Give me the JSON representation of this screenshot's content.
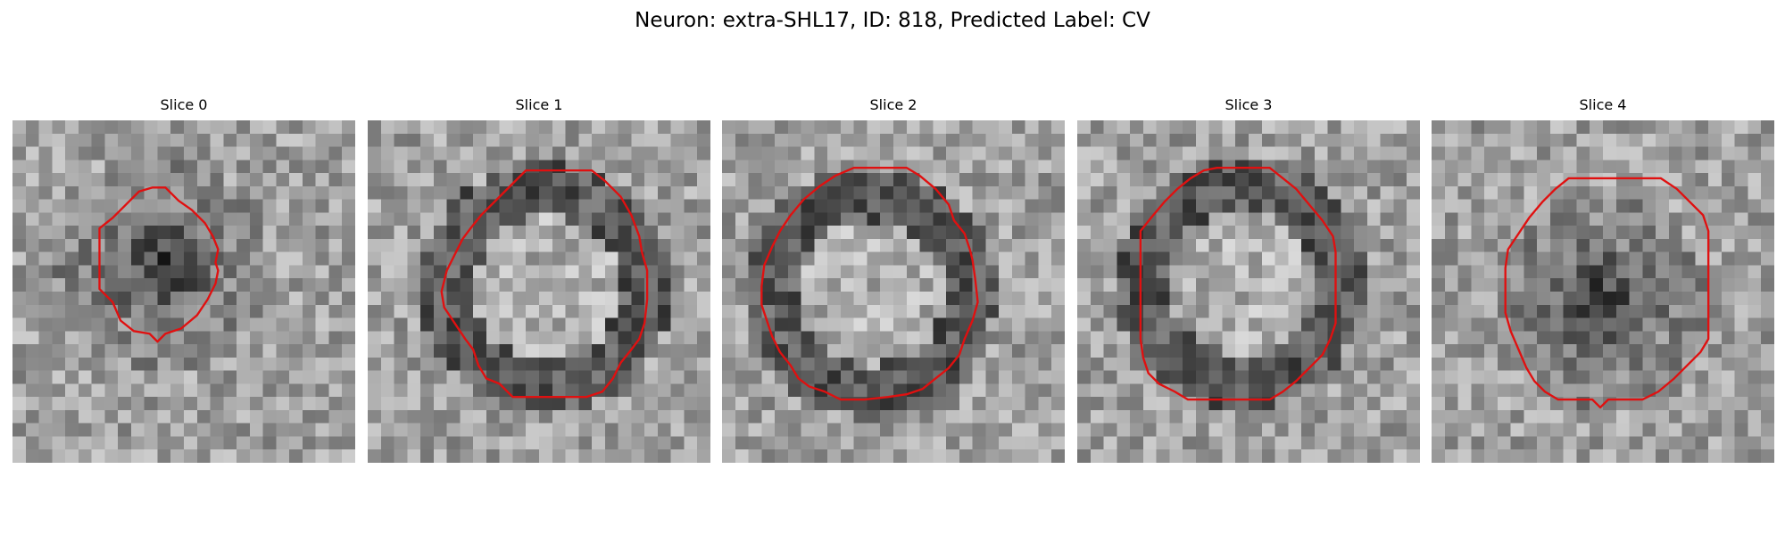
{
  "figure": {
    "title": "Neuron: extra-SHL17, ID: 818, Predicted Label: CV"
  },
  "contour_color": "#e01010",
  "slices": [
    {
      "title": "Slice 0",
      "blob": "dark",
      "contour": [
        [
          10.6,
          5.1
        ],
        [
          11.6,
          5.1
        ],
        [
          12.6,
          6.1
        ],
        [
          13.6,
          6.8
        ],
        [
          14.6,
          7.8
        ],
        [
          15.2,
          8.8
        ],
        [
          15.6,
          9.8
        ],
        [
          15.4,
          10.8
        ],
        [
          15.6,
          11.4
        ],
        [
          15.4,
          12.4
        ],
        [
          14.8,
          13.6
        ],
        [
          14.0,
          14.8
        ],
        [
          12.8,
          15.8
        ],
        [
          11.6,
          16.2
        ],
        [
          11.0,
          16.8
        ],
        [
          10.4,
          16.2
        ],
        [
          9.2,
          16.0
        ],
        [
          8.2,
          15.2
        ],
        [
          7.6,
          13.8
        ],
        [
          6.6,
          12.8
        ],
        [
          6.6,
          10.8
        ],
        [
          6.6,
          8.2
        ],
        [
          7.6,
          7.4
        ],
        [
          8.6,
          6.4
        ],
        [
          9.6,
          5.4
        ]
      ]
    },
    {
      "title": "Slice 1",
      "blob": "ring",
      "contour": [
        [
          12.0,
          3.8
        ],
        [
          17.0,
          3.8
        ],
        [
          18.0,
          4.6
        ],
        [
          19.2,
          5.8
        ],
        [
          20.0,
          7.2
        ],
        [
          20.6,
          8.8
        ],
        [
          20.8,
          10.0
        ],
        [
          21.2,
          11.4
        ],
        [
          21.2,
          13.6
        ],
        [
          21.0,
          15.4
        ],
        [
          20.6,
          16.6
        ],
        [
          20.0,
          17.4
        ],
        [
          19.2,
          18.4
        ],
        [
          18.6,
          19.6
        ],
        [
          17.8,
          20.6
        ],
        [
          16.6,
          21.0
        ],
        [
          11.0,
          21.0
        ],
        [
          10.0,
          20.0
        ],
        [
          9.0,
          19.6
        ],
        [
          8.4,
          18.6
        ],
        [
          8.0,
          17.4
        ],
        [
          7.4,
          16.6
        ],
        [
          6.6,
          15.4
        ],
        [
          5.8,
          14.2
        ],
        [
          5.6,
          13.0
        ],
        [
          6.0,
          11.4
        ],
        [
          6.6,
          10.2
        ],
        [
          7.2,
          9.0
        ],
        [
          7.8,
          8.2
        ],
        [
          8.6,
          7.2
        ],
        [
          9.8,
          6.0
        ],
        [
          11.0,
          4.8
        ]
      ]
    },
    {
      "title": "Slice 2",
      "blob": "ring",
      "contour": [
        [
          10.0,
          3.6
        ],
        [
          14.0,
          3.6
        ],
        [
          15.0,
          4.2
        ],
        [
          16.2,
          5.2
        ],
        [
          17.2,
          6.4
        ],
        [
          17.6,
          7.6
        ],
        [
          18.4,
          8.6
        ],
        [
          18.8,
          9.8
        ],
        [
          19.0,
          10.6
        ],
        [
          19.2,
          12.0
        ],
        [
          19.4,
          13.8
        ],
        [
          19.0,
          15.2
        ],
        [
          18.4,
          16.6
        ],
        [
          18.0,
          17.8
        ],
        [
          17.2,
          18.8
        ],
        [
          16.2,
          19.6
        ],
        [
          15.2,
          20.4
        ],
        [
          14.0,
          20.8
        ],
        [
          12.6,
          21.0
        ],
        [
          10.8,
          21.2
        ],
        [
          9.0,
          21.2
        ],
        [
          7.8,
          20.6
        ],
        [
          6.6,
          20.2
        ],
        [
          5.8,
          19.6
        ],
        [
          5.2,
          18.6
        ],
        [
          4.4,
          17.6
        ],
        [
          3.8,
          16.4
        ],
        [
          3.4,
          15.2
        ],
        [
          3.0,
          14.0
        ],
        [
          3.0,
          12.6
        ],
        [
          3.2,
          11.0
        ],
        [
          3.8,
          9.6
        ],
        [
          4.4,
          8.4
        ],
        [
          5.2,
          7.2
        ],
        [
          6.2,
          6.0
        ],
        [
          7.4,
          5.0
        ],
        [
          8.6,
          4.2
        ]
      ]
    },
    {
      "title": "Slice 3",
      "blob": "ring",
      "contour": [
        [
          10.6,
          3.6
        ],
        [
          14.6,
          3.6
        ],
        [
          15.6,
          4.4
        ],
        [
          16.6,
          5.2
        ],
        [
          17.6,
          6.4
        ],
        [
          18.6,
          7.6
        ],
        [
          19.4,
          8.8
        ],
        [
          19.6,
          10.0
        ],
        [
          19.6,
          13.0
        ],
        [
          19.6,
          15.4
        ],
        [
          19.2,
          16.6
        ],
        [
          18.6,
          17.8
        ],
        [
          17.6,
          18.8
        ],
        [
          16.6,
          19.8
        ],
        [
          15.6,
          20.6
        ],
        [
          14.6,
          21.2
        ],
        [
          8.4,
          21.2
        ],
        [
          7.4,
          20.6
        ],
        [
          6.2,
          20.0
        ],
        [
          5.4,
          19.2
        ],
        [
          5.0,
          18.0
        ],
        [
          4.8,
          16.6
        ],
        [
          4.8,
          11.2
        ],
        [
          4.8,
          8.4
        ],
        [
          5.6,
          7.4
        ],
        [
          6.6,
          6.2
        ],
        [
          7.6,
          5.2
        ],
        [
          8.6,
          4.4
        ],
        [
          9.6,
          3.8
        ]
      ]
    },
    {
      "title": "Slice 4",
      "blob": "dark",
      "contour": [
        [
          10.4,
          4.4
        ],
        [
          17.4,
          4.4
        ],
        [
          18.6,
          5.2
        ],
        [
          19.6,
          6.2
        ],
        [
          20.6,
          7.2
        ],
        [
          21.0,
          8.4
        ],
        [
          21.0,
          12.0
        ],
        [
          21.0,
          16.6
        ],
        [
          20.4,
          17.6
        ],
        [
          19.4,
          18.6
        ],
        [
          18.4,
          19.6
        ],
        [
          17.2,
          20.6
        ],
        [
          16.0,
          21.2
        ],
        [
          13.4,
          21.2
        ],
        [
          12.8,
          21.8
        ],
        [
          12.2,
          21.2
        ],
        [
          9.6,
          21.2
        ],
        [
          8.6,
          20.6
        ],
        [
          7.8,
          19.8
        ],
        [
          7.2,
          18.8
        ],
        [
          6.6,
          17.4
        ],
        [
          6.0,
          16.0
        ],
        [
          5.6,
          14.6
        ],
        [
          5.6,
          11.2
        ],
        [
          5.8,
          9.8
        ],
        [
          6.6,
          8.6
        ],
        [
          7.4,
          7.4
        ],
        [
          8.4,
          6.2
        ],
        [
          9.4,
          5.2
        ]
      ]
    }
  ]
}
